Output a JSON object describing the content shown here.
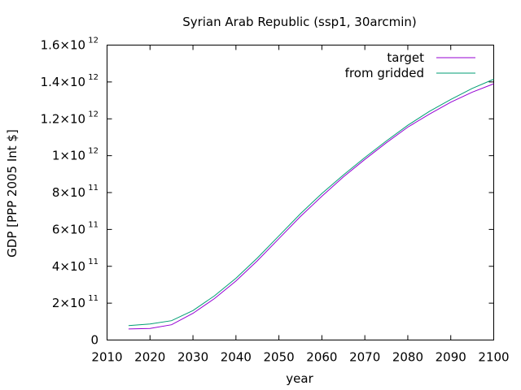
{
  "chart_data": {
    "type": "line",
    "title": "Syrian Arab Republic (ssp1, 30arcmin)",
    "xlabel": "year",
    "ylabel": "GDP [PPP 2005 Int $]",
    "xlim": [
      2010,
      2100
    ],
    "ylim": [
      0,
      1600000000000.0
    ],
    "grid": false,
    "legend_position": "top-right",
    "x_ticks": [
      {
        "value": 2010,
        "label": "2010"
      },
      {
        "value": 2020,
        "label": "2020"
      },
      {
        "value": 2030,
        "label": "2030"
      },
      {
        "value": 2040,
        "label": "2040"
      },
      {
        "value": 2050,
        "label": "2050"
      },
      {
        "value": 2060,
        "label": "2060"
      },
      {
        "value": 2070,
        "label": "2070"
      },
      {
        "value": 2080,
        "label": "2080"
      },
      {
        "value": 2090,
        "label": "2090"
      },
      {
        "value": 2100,
        "label": "2100"
      }
    ],
    "y_ticks": [
      {
        "value": 0,
        "mant": "0",
        "exp": ""
      },
      {
        "value": 200000000000.0,
        "mant": "2×10",
        "exp": "11"
      },
      {
        "value": 400000000000.0,
        "mant": "4×10",
        "exp": "11"
      },
      {
        "value": 600000000000.0,
        "mant": "6×10",
        "exp": "11"
      },
      {
        "value": 800000000000.0,
        "mant": "8×10",
        "exp": "11"
      },
      {
        "value": 1000000000000.0,
        "mant": "1×10",
        "exp": "12"
      },
      {
        "value": 1200000000000.0,
        "mant": "1.2×10",
        "exp": "12"
      },
      {
        "value": 1400000000000.0,
        "mant": "1.4×10",
        "exp": "12"
      },
      {
        "value": 1600000000000.0,
        "mant": "1.6×10",
        "exp": "12"
      }
    ],
    "x": [
      2015,
      2020,
      2025,
      2030,
      2035,
      2040,
      2045,
      2050,
      2055,
      2060,
      2065,
      2070,
      2075,
      2080,
      2085,
      2090,
      2095,
      2100
    ],
    "series": [
      {
        "name": "target",
        "color": "#9400d3",
        "values": [
          60000000000.0,
          63000000000.0,
          83000000000.0,
          145000000000.0,
          225000000000.0,
          320000000000.0,
          430000000000.0,
          550000000000.0,
          670000000000.0,
          780000000000.0,
          885000000000.0,
          980000000000.0,
          1070000000000.0,
          1155000000000.0,
          1225000000000.0,
          1290000000000.0,
          1345000000000.0,
          1390000000000.0
        ]
      },
      {
        "name": "from gridded",
        "color": "#009e73",
        "values": [
          78000000000.0,
          87000000000.0,
          105000000000.0,
          160000000000.0,
          240000000000.0,
          335000000000.0,
          445000000000.0,
          565000000000.0,
          685000000000.0,
          795000000000.0,
          895000000000.0,
          990000000000.0,
          1080000000000.0,
          1165000000000.0,
          1240000000000.0,
          1305000000000.0,
          1365000000000.0,
          1415000000000.0
        ]
      }
    ]
  }
}
